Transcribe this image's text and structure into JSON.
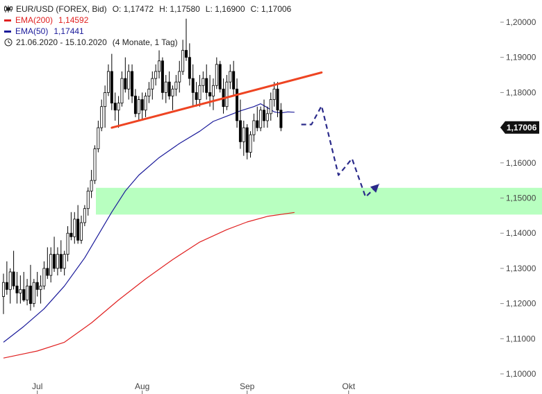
{
  "header": {
    "instrument": "EUR/USD (FOREX, Bid)",
    "ohlc": {
      "open": "O: 1,17472",
      "high": "H: 1,17580",
      "low": "L: 1,16900",
      "close": "C: 1,17006"
    },
    "ema200": {
      "label": "EMA(200)",
      "value": "1,14592",
      "color": "#e02020"
    },
    "ema50": {
      "label": "EMA(50)",
      "value": "1,17441",
      "color": "#1a1a9a"
    },
    "range": {
      "dates": "21.06.2020 - 15.10.2020",
      "span": "(4 Monate, 1 Tag)"
    },
    "chart_icon": "candlestick-icon",
    "clock_icon": "clock-icon"
  },
  "chart_data": {
    "type": "candlestick",
    "ylim": [
      1.1,
      1.2
    ],
    "y_ticks": [
      "1,20000",
      "1,19000",
      "1,18000",
      "1,17000",
      "1,16000",
      "1,15000",
      "1,14000",
      "1,13000",
      "1,12000",
      "1,11000",
      "1,10000"
    ],
    "x_ticks": [
      {
        "label": "Jul",
        "day": 10
      },
      {
        "label": "Aug",
        "day": 41
      },
      {
        "label": "Sep",
        "day": 72
      },
      {
        "label": "Okt",
        "day": 102
      }
    ],
    "last_price": "1,17006",
    "colors": {
      "candle_up": "#ffffff",
      "candle_down": "#000000",
      "ema200": "#e02020",
      "ema50": "#1a1a9a",
      "resistance": "#ee4422",
      "support_zone": "#b8ffc0",
      "forecast": "#2a2a8a",
      "price_label": "#111111"
    },
    "candles": [
      [
        1.122,
        1.1285,
        1.117,
        1.126
      ],
      [
        1.126,
        1.132,
        1.1225,
        1.124
      ],
      [
        1.124,
        1.13,
        1.12,
        1.129
      ],
      [
        1.129,
        1.135,
        1.124,
        1.125
      ],
      [
        1.125,
        1.129,
        1.12,
        1.123
      ],
      [
        1.123,
        1.128,
        1.12,
        1.124
      ],
      [
        1.124,
        1.129,
        1.1205,
        1.121
      ],
      [
        1.121,
        1.127,
        1.1195,
        1.125
      ],
      [
        1.125,
        1.131,
        1.118,
        1.12
      ],
      [
        1.12,
        1.127,
        1.119,
        1.126
      ],
      [
        1.126,
        1.129,
        1.122,
        1.124
      ],
      [
        1.124,
        1.128,
        1.12,
        1.125
      ],
      [
        1.125,
        1.132,
        1.124,
        1.13
      ],
      [
        1.13,
        1.136,
        1.127,
        1.128
      ],
      [
        1.128,
        1.136,
        1.126,
        1.134
      ],
      [
        1.134,
        1.139,
        1.129,
        1.13
      ],
      [
        1.13,
        1.136,
        1.128,
        1.134
      ],
      [
        1.134,
        1.138,
        1.129,
        1.13
      ],
      [
        1.13,
        1.135,
        1.128,
        1.134
      ],
      [
        1.134,
        1.142,
        1.132,
        1.14
      ],
      [
        1.14,
        1.146,
        1.138,
        1.139
      ],
      [
        1.139,
        1.146,
        1.137,
        1.144
      ],
      [
        1.144,
        1.148,
        1.137,
        1.138
      ],
      [
        1.138,
        1.145,
        1.137,
        1.143
      ],
      [
        1.143,
        1.148,
        1.142,
        1.147
      ],
      [
        1.147,
        1.153,
        1.145,
        1.152
      ],
      [
        1.152,
        1.158,
        1.15,
        1.155
      ],
      [
        1.155,
        1.165,
        1.154,
        1.164
      ],
      [
        1.164,
        1.172,
        1.163,
        1.17
      ],
      [
        1.17,
        1.178,
        1.169,
        1.176
      ],
      [
        1.176,
        1.182,
        1.17,
        1.18
      ],
      [
        1.18,
        1.188,
        1.179,
        1.186
      ],
      [
        1.186,
        1.191,
        1.175,
        1.177
      ],
      [
        1.177,
        1.18,
        1.172,
        1.175
      ],
      [
        1.175,
        1.179,
        1.17,
        1.177
      ],
      [
        1.177,
        1.186,
        1.176,
        1.184
      ],
      [
        1.184,
        1.19,
        1.18,
        1.181
      ],
      [
        1.181,
        1.188,
        1.178,
        1.186
      ],
      [
        1.186,
        1.188,
        1.177,
        1.179
      ],
      [
        1.179,
        1.181,
        1.173,
        1.174
      ],
      [
        1.174,
        1.179,
        1.172,
        1.178
      ],
      [
        1.178,
        1.18,
        1.172,
        1.175
      ],
      [
        1.175,
        1.18,
        1.173,
        1.179
      ],
      [
        1.179,
        1.183,
        1.177,
        1.181
      ],
      [
        1.181,
        1.186,
        1.178,
        1.184
      ],
      [
        1.184,
        1.188,
        1.182,
        1.186
      ],
      [
        1.186,
        1.192,
        1.184,
        1.189
      ],
      [
        1.189,
        1.19,
        1.178,
        1.18
      ],
      [
        1.18,
        1.185,
        1.177,
        1.183
      ],
      [
        1.183,
        1.186,
        1.178,
        1.179
      ],
      [
        1.179,
        1.182,
        1.175,
        1.181
      ],
      [
        1.181,
        1.185,
        1.179,
        1.183
      ],
      [
        1.183,
        1.189,
        1.18,
        1.186
      ],
      [
        1.186,
        1.195,
        1.185,
        1.192
      ],
      [
        1.192,
        1.201,
        1.189,
        1.19
      ],
      [
        1.19,
        1.194,
        1.182,
        1.184
      ],
      [
        1.184,
        1.188,
        1.176,
        1.18
      ],
      [
        1.18,
        1.183,
        1.176,
        1.178
      ],
      [
        1.178,
        1.185,
        1.176,
        1.182
      ],
      [
        1.182,
        1.186,
        1.18,
        1.184
      ],
      [
        1.184,
        1.188,
        1.178,
        1.18
      ],
      [
        1.18,
        1.185,
        1.176,
        1.179
      ],
      [
        1.179,
        1.184,
        1.175,
        1.182
      ],
      [
        1.182,
        1.19,
        1.181,
        1.188
      ],
      [
        1.188,
        1.189,
        1.18,
        1.181
      ],
      [
        1.181,
        1.184,
        1.174,
        1.176
      ],
      [
        1.176,
        1.185,
        1.175,
        1.183
      ],
      [
        1.183,
        1.188,
        1.181,
        1.186
      ],
      [
        1.186,
        1.189,
        1.179,
        1.181
      ],
      [
        1.181,
        1.184,
        1.17,
        1.172
      ],
      [
        1.172,
        1.178,
        1.164,
        1.166
      ],
      [
        1.166,
        1.172,
        1.162,
        1.17
      ],
      [
        1.17,
        1.171,
        1.161,
        1.163
      ],
      [
        1.163,
        1.169,
        1.1615,
        1.168
      ],
      [
        1.168,
        1.174,
        1.166,
        1.172
      ],
      [
        1.172,
        1.176,
        1.169,
        1.17
      ],
      [
        1.17,
        1.176,
        1.169,
        1.175
      ],
      [
        1.175,
        1.178,
        1.17,
        1.172
      ],
      [
        1.172,
        1.176,
        1.17,
        1.174
      ],
      [
        1.174,
        1.18,
        1.172,
        1.178
      ],
      [
        1.178,
        1.183,
        1.176,
        1.181
      ],
      [
        1.181,
        1.183,
        1.173,
        1.175
      ],
      [
        1.175,
        1.177,
        1.169,
        1.17
      ]
    ],
    "ema50": [
      [
        0,
        1.109
      ],
      [
        6,
        1.1135
      ],
      [
        12,
        1.1185
      ],
      [
        18,
        1.125
      ],
      [
        24,
        1.133
      ],
      [
        28,
        1.1395
      ],
      [
        32,
        1.146
      ],
      [
        36,
        1.152
      ],
      [
        40,
        1.1565
      ],
      [
        46,
        1.1615
      ],
      [
        52,
        1.1655
      ],
      [
        58,
        1.169
      ],
      [
        62,
        1.1718
      ],
      [
        66,
        1.1733
      ],
      [
        70,
        1.1748
      ],
      [
        74,
        1.176
      ],
      [
        76,
        1.1768
      ],
      [
        78,
        1.1757
      ],
      [
        80,
        1.1745
      ],
      [
        82,
        1.1742
      ],
      [
        84,
        1.1745
      ],
      [
        86,
        1.1744
      ]
    ],
    "ema200": [
      [
        0,
        1.1045
      ],
      [
        10,
        1.1065
      ],
      [
        18,
        1.109
      ],
      [
        26,
        1.1145
      ],
      [
        34,
        1.121
      ],
      [
        42,
        1.127
      ],
      [
        50,
        1.1325
      ],
      [
        58,
        1.1375
      ],
      [
        66,
        1.141
      ],
      [
        72,
        1.1432
      ],
      [
        78,
        1.1448
      ],
      [
        86,
        1.1459
      ]
    ],
    "resistance_line": [
      [
        32,
        1.17
      ],
      [
        94,
        1.1857
      ]
    ],
    "support_zone": [
      1.1453,
      1.1529
    ],
    "forecast_path": [
      [
        88,
        1.1709
      ],
      [
        91,
        1.1709
      ],
      [
        94,
        1.1762
      ],
      [
        99,
        1.1565
      ],
      [
        103,
        1.1612
      ],
      [
        107,
        1.1503
      ],
      [
        111,
        1.154
      ]
    ]
  }
}
